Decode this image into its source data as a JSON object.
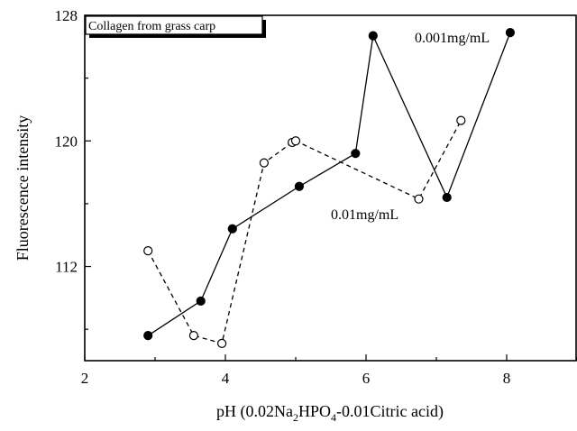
{
  "chart_data": {
    "type": "line",
    "title": "",
    "xlabel": {
      "prefix": "pH (0.02Na",
      "sub1": "2",
      "mid": "HPO",
      "sub2": "4",
      "suffix": "-0.01Citric acid)"
    },
    "ylabel": "Fluorescence intensity",
    "xlim": [
      2,
      9
    ],
    "ylim": [
      106,
      128
    ],
    "xticks": [
      2,
      4,
      6,
      8
    ],
    "yticks": [
      112,
      120,
      128
    ],
    "grid": false,
    "legend_box": {
      "text": "Collagen from grass carp",
      "placement": "top-left"
    },
    "series": [
      {
        "name": "0.001mg/mL",
        "marker": "filled-circle",
        "line_style": "solid",
        "color": "#000000",
        "x": [
          2.9,
          3.65,
          4.1,
          5.05,
          5.85,
          6.1,
          7.15,
          8.05
        ],
        "y": [
          107.6,
          109.8,
          114.4,
          117.1,
          119.2,
          126.7,
          116.4,
          126.9
        ]
      },
      {
        "name": "0.01mg/mL",
        "marker": "open-circle",
        "line_style": "dashed",
        "color": "#000000",
        "x": [
          2.9,
          3.55,
          3.95,
          4.55,
          4.95,
          5.0,
          6.75,
          7.35
        ],
        "y": [
          113.0,
          107.6,
          107.1,
          118.6,
          119.9,
          120.0,
          116.3,
          121.3
        ]
      }
    ]
  }
}
